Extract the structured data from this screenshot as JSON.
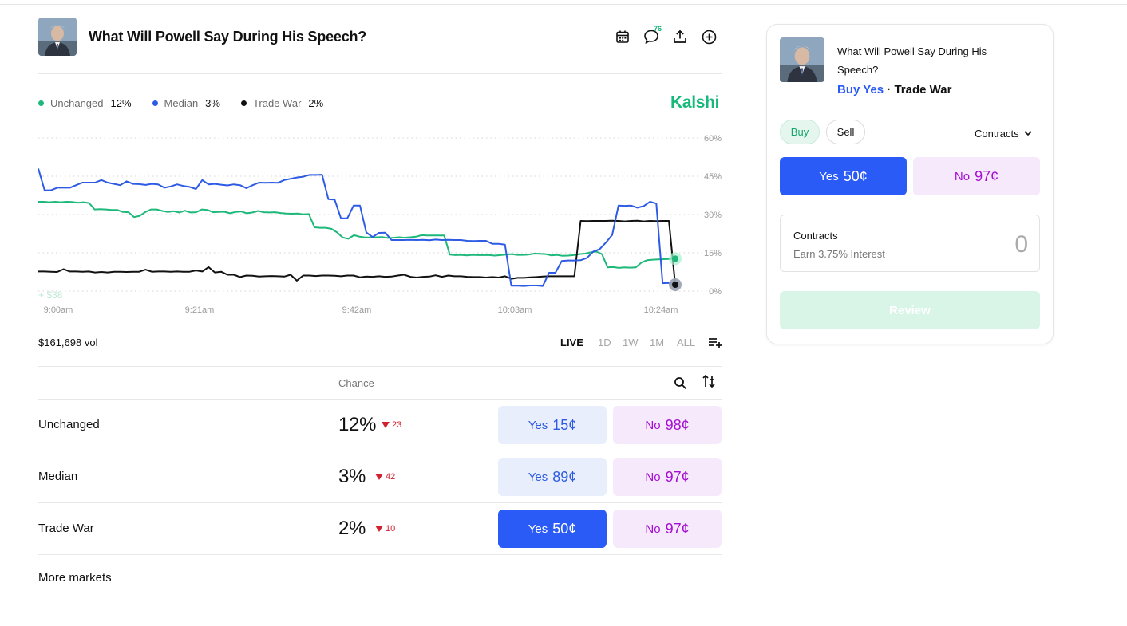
{
  "header": {
    "title": "What Will Powell Say During His Speech?",
    "comment_count": "76",
    "icons": [
      "calendar-icon",
      "comment-icon",
      "share-icon",
      "add-icon"
    ]
  },
  "legend": [
    {
      "name": "Unchanged",
      "value": "12%",
      "color": "#1db87a"
    },
    {
      "name": "Median",
      "value": "3%",
      "color": "#2d5be3"
    },
    {
      "name": "Trade War",
      "value": "2%",
      "color": "#111111"
    }
  ],
  "brand": "Kalshi",
  "chart_data": {
    "type": "line",
    "x_ticks": [
      "9:00am",
      "9:21am",
      "9:42am",
      "10:03am",
      "10:24am"
    ],
    "y_ticks": [
      "60%",
      "45%",
      "30%",
      "15%",
      "0%"
    ],
    "ylim": [
      0,
      60
    ],
    "grid": true,
    "annotation": "+ $38",
    "series": [
      {
        "name": "Unchanged",
        "color": "#1db87a",
        "values": [
          35,
          35,
          34.8,
          35,
          34.8,
          35,
          34.9,
          34.6,
          34.8,
          34.5,
          32,
          32.1,
          32,
          31.8,
          31.8,
          31,
          30.9,
          29,
          29.5,
          31,
          32,
          32,
          31.4,
          31,
          31.3,
          30.8,
          31.5,
          30.8,
          30.9,
          32,
          31.8,
          30.9,
          31,
          31.1,
          30.5,
          31,
          31.2,
          30.5,
          30.8,
          31.4,
          30.9,
          30.8,
          30.9,
          30.6,
          30.4,
          30.3,
          30.4,
          30.1,
          30.2,
          25,
          24.8,
          24.8,
          24.4,
          23,
          21,
          20.5,
          21.9,
          21.3,
          21,
          21,
          21.1,
          21.2,
          20.8,
          20.9,
          21.1,
          20.9,
          21.1,
          21.3,
          21.9,
          21.8,
          21.8,
          21.8,
          21.8,
          14.3,
          14.1,
          14.2,
          14,
          14.2,
          14.1,
          14.1,
          14.1,
          13.9,
          14.1,
          14.3,
          14.5,
          14.2,
          14.2,
          14.3,
          14.7,
          14.6,
          14.5,
          14,
          14.2,
          13.8,
          13.9,
          14.1,
          14.5,
          14.7,
          15.2,
          15.5,
          14.5,
          9.3,
          9.4,
          9.1,
          9.3,
          9.2,
          9.3,
          11.2,
          12.1,
          12.3,
          12.4,
          12.5,
          12.6,
          12.7
        ]
      },
      {
        "name": "Median",
        "color": "#2d5be3",
        "values": [
          48,
          39.5,
          39.5,
          40.5,
          40.5,
          40.5,
          41.5,
          42.5,
          42.5,
          42.5,
          43.5,
          42.5,
          42,
          41.5,
          43,
          42,
          41.9,
          41.6,
          42,
          41.8,
          40.5,
          41,
          41.8,
          41.2,
          40.8,
          40,
          43.5,
          41.8,
          42,
          41.7,
          41.4,
          41.8,
          41.5,
          40.3,
          41.5,
          42.5,
          42.4,
          42.5,
          42.4,
          43.5,
          44,
          44.5,
          44.8,
          45.5,
          45.5,
          45.6,
          36,
          35.8,
          28.5,
          28.5,
          33.5,
          33.5,
          23,
          21.2,
          22.8,
          22.9,
          20,
          20,
          20,
          20.1,
          20,
          20.1,
          19.9,
          20.2,
          20,
          20.1,
          20,
          20,
          19.7,
          19.6,
          19.7,
          19.7,
          18.5,
          18.5,
          18.2,
          2.1,
          2.1,
          2,
          2.2,
          2.2,
          2,
          7.2,
          7.2,
          11.8,
          12,
          12,
          12.1,
          13,
          15.5,
          16.4,
          19,
          22,
          33.5,
          33.4,
          33.5,
          32.7,
          33.3,
          35,
          34.3,
          3.1,
          3.2,
          2.5
        ]
      },
      {
        "name": "Trade War",
        "color": "#111111",
        "values": [
          7.7,
          7.7,
          7.6,
          7.5,
          8.6,
          7.7,
          7.7,
          7.6,
          7.7,
          7.3,
          7.5,
          7.3,
          7.6,
          7.6,
          7.5,
          7.6,
          7.6,
          8.4,
          7.6,
          7.7,
          7.7,
          7.6,
          7.7,
          7.6,
          7.6,
          8.1,
          7.7,
          9.4,
          7.3,
          7.6,
          6.4,
          6.4,
          5.5,
          6.1,
          6,
          5.7,
          5.8,
          5.9,
          5.8,
          5.7,
          6.4,
          4.1,
          6.1,
          6.1,
          5.9,
          6.1,
          6.1,
          6,
          5.8,
          6.1,
          6.1,
          5.4,
          5.7,
          5.6,
          5.8,
          5.6,
          5.7,
          6.1,
          6.4,
          5.6,
          5.3,
          5.6,
          5.7,
          6.2,
          5.6,
          6.1,
          5.8,
          5.8,
          5.6,
          5.5,
          5.5,
          5.3,
          5.5,
          5.3,
          5.8,
          4.8,
          5.2,
          5.2,
          5.4,
          5.5,
          5.7,
          5.8,
          5.8,
          5.8,
          5.8,
          5.8,
          27.5,
          27.4,
          27.5,
          27.5,
          27.5,
          27.6,
          27.5,
          27.3,
          27.5,
          27.6,
          27.3,
          27.5,
          27.4,
          27.5,
          27.5,
          2.5
        ]
      }
    ]
  },
  "volume": "$161,698 vol",
  "ranges": [
    {
      "label": "LIVE",
      "active": true
    },
    {
      "label": "1D",
      "active": false
    },
    {
      "label": "1W",
      "active": false
    },
    {
      "label": "1M",
      "active": false
    },
    {
      "label": "ALL",
      "active": false
    }
  ],
  "table": {
    "chance_header": "Chance",
    "rows": [
      {
        "label": "Unchanged",
        "chance": "12%",
        "delta": "23",
        "yes_label": "Yes",
        "yes_price": "15¢",
        "no_label": "No",
        "no_price": "98¢",
        "yes_selected": false
      },
      {
        "label": "Median",
        "chance": "3%",
        "delta": "42",
        "yes_label": "Yes",
        "yes_price": "89¢",
        "no_label": "No",
        "no_price": "97¢",
        "yes_selected": false
      },
      {
        "label": "Trade War",
        "chance": "2%",
        "delta": "10",
        "yes_label": "Yes",
        "yes_price": "50¢",
        "no_label": "No",
        "no_price": "97¢",
        "yes_selected": true
      }
    ],
    "more_label": "More markets"
  },
  "card": {
    "title": "What Will Powell Say During His Speech?",
    "action": "Buy Yes",
    "separator": " · ",
    "outcome": "Trade War",
    "buy_label": "Buy",
    "sell_label": "Sell",
    "unit_label": "Contracts",
    "yes_label": "Yes",
    "yes_price": "50¢",
    "no_label": "No",
    "no_price": "97¢",
    "qty_label": "Contracts",
    "qty_sub": "Earn 3.75% Interest",
    "qty_value": "0",
    "review_label": "Review"
  }
}
